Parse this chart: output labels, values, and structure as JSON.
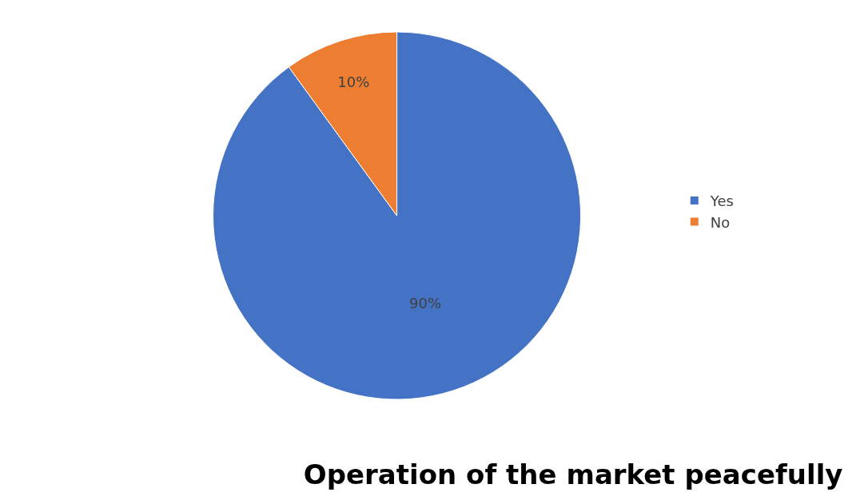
{
  "chart_data": {
    "type": "pie",
    "title": "Operation of the market peacefully",
    "categories": [
      "Yes",
      "No"
    ],
    "values": [
      90,
      10
    ],
    "colors": [
      "#4472c4",
      "#ed7d31"
    ],
    "value_labels": [
      "90%",
      "10%"
    ],
    "legend": "right"
  }
}
